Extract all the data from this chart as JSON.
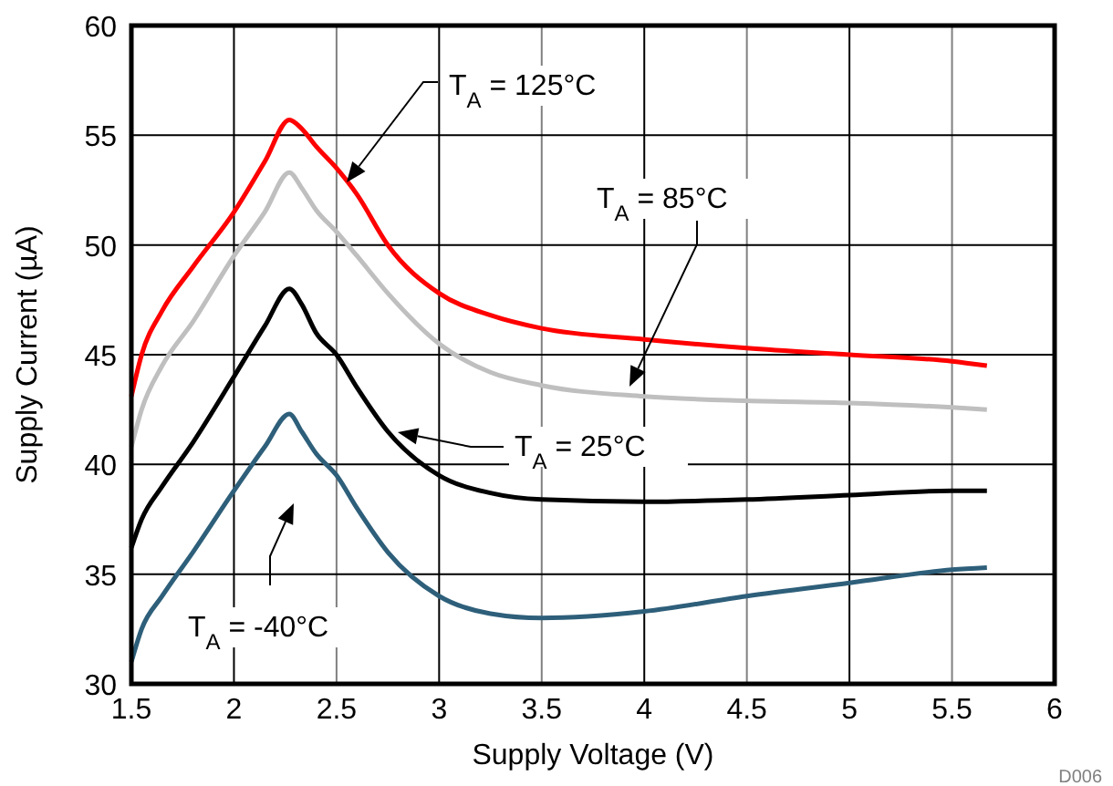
{
  "chart_data": {
    "type": "line",
    "xlabel": "Supply Voltage (V)",
    "ylabel": "Supply Current (µA)",
    "xlim": [
      1.5,
      6
    ],
    "xticks": [
      1.5,
      2,
      2.5,
      3,
      3.5,
      4,
      4.5,
      5,
      5.5,
      6
    ],
    "ylim": [
      30,
      60
    ],
    "yticks": [
      30,
      35,
      40,
      45,
      50,
      55,
      60
    ],
    "grid": true,
    "line_style": "solid",
    "marker": "none",
    "x": [
      1.5,
      1.55,
      1.65,
      1.8,
      2.0,
      2.15,
      2.27,
      2.33,
      2.4,
      2.5,
      2.6,
      2.75,
      3.0,
      3.25,
      3.5,
      4.0,
      4.5,
      5.0,
      5.5,
      5.67
    ],
    "series": [
      {
        "color": "#ff0000",
        "values": [
          43.1,
          45,
          47,
          49,
          51.5,
          53.8,
          55.7,
          55.3,
          54.5,
          53.5,
          52.3,
          50,
          47.8,
          46.8,
          46.2,
          45.7,
          45.3,
          45.0,
          44.7,
          44.5
        ]
      },
      {
        "color": "#bfbfbf",
        "values": [
          40.8,
          42.5,
          44.5,
          46.5,
          49.5,
          51.5,
          53.3,
          52.6,
          51.6,
          50.6,
          49.5,
          47.8,
          45.5,
          44.2,
          43.6,
          43.1,
          42.9,
          42.8,
          42.6,
          42.5
        ]
      },
      {
        "color": "#000000",
        "values": [
          36.2,
          37.5,
          39,
          41,
          44,
          46.3,
          48,
          47.3,
          46,
          45,
          43.5,
          41.5,
          39.5,
          38.7,
          38.4,
          38.3,
          38.4,
          38.6,
          38.8,
          38.8
        ]
      },
      {
        "color": "#2e5f7a",
        "values": [
          31,
          32.5,
          34,
          36,
          38.8,
          40.8,
          42.3,
          41.5,
          40.5,
          39.5,
          38,
          36,
          34,
          33.2,
          33,
          33.3,
          34,
          34.6,
          35.2,
          35.3
        ]
      }
    ],
    "annotations": [
      "T$_{A}$ = 125°C",
      "T$_{A}$ = 85°C",
      "T$_{A}$ = 25°C",
      "T$_{A}$ = -40°C",
      "D006"
    ]
  }
}
